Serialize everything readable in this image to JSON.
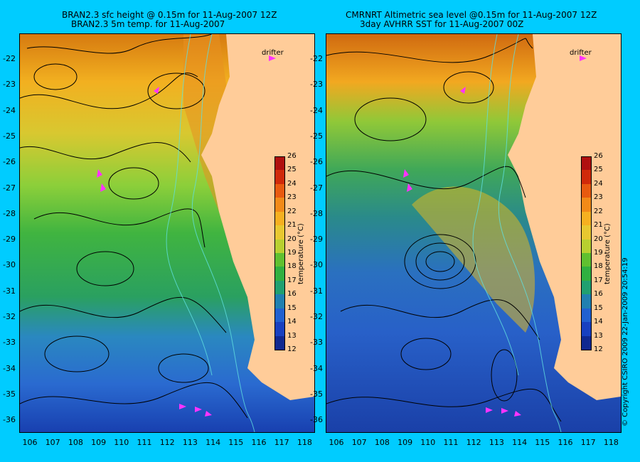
{
  "left_panel": {
    "title_line1": "BRAN2.3 sfc height @ 0.15m for 11-Aug-2007 12Z",
    "title_line2": "BRAN2.3 5m temp. for 11-Aug-2007"
  },
  "right_panel": {
    "title_line1": "CMRNRT Altimetric sea level  @0.15m  for 11-Aug-2007 12Z",
    "title_line2": "3day AVHRR SST for 11-Aug-2007 00Z"
  },
  "drifter_label": "drifter",
  "latitude_labels": [
    "-22",
    "-23",
    "-24",
    "-25",
    "-26",
    "-27",
    "-28",
    "-29",
    "-30",
    "-31",
    "-32",
    "-33",
    "-34",
    "-35",
    "-36"
  ],
  "longitude_labels": [
    "106",
    "107",
    "108",
    "109",
    "110",
    "111",
    "112",
    "113",
    "114",
    "115",
    "116",
    "117",
    "118"
  ],
  "colorbar": {
    "title": "temperature (°C)",
    "labels": [
      "26",
      "25",
      "24",
      "23",
      "22",
      "21",
      "20",
      "19",
      "18",
      "17",
      "16",
      "15",
      "14",
      "13",
      "12"
    ],
    "colors": [
      "#b01010",
      "#d02a0a",
      "#e85a10",
      "#f28a18",
      "#f6b020",
      "#e8c830",
      "#b8d030",
      "#60c030",
      "#30b040",
      "#20a070",
      "#2080b0",
      "#2060d0",
      "#1840c0",
      "#102890"
    ]
  },
  "copyright": "© Copyright CSIRO 2009   22-Jan-2009 20:54:19"
}
